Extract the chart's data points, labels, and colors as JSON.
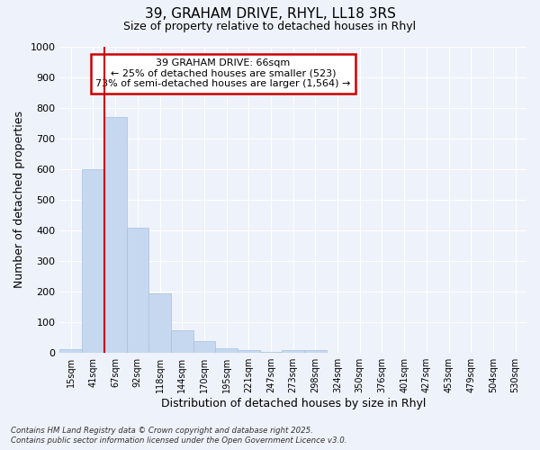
{
  "title_line1": "39, GRAHAM DRIVE, RHYL, LL18 3RS",
  "title_line2": "Size of property relative to detached houses in Rhyl",
  "xlabel": "Distribution of detached houses by size in Rhyl",
  "ylabel": "Number of detached properties",
  "categories": [
    "15sqm",
    "41sqm",
    "67sqm",
    "92sqm",
    "118sqm",
    "144sqm",
    "170sqm",
    "195sqm",
    "221sqm",
    "247sqm",
    "273sqm",
    "298sqm",
    "324sqm",
    "350sqm",
    "376sqm",
    "401sqm",
    "427sqm",
    "453sqm",
    "479sqm",
    "504sqm",
    "530sqm"
  ],
  "values": [
    12,
    600,
    770,
    410,
    193,
    75,
    38,
    15,
    8,
    5,
    10,
    10,
    0,
    0,
    0,
    0,
    0,
    0,
    0,
    0,
    0
  ],
  "bar_color": "#c5d8ef",
  "bar_edge_color": "#a8c0e0",
  "red_line_index": 2,
  "ylim": [
    0,
    1000
  ],
  "yticks": [
    0,
    100,
    200,
    300,
    400,
    500,
    600,
    700,
    800,
    900,
    1000
  ],
  "annotation_text": "39 GRAHAM DRIVE: 66sqm\n← 25% of detached houses are smaller (523)\n73% of semi-detached houses are larger (1,564) →",
  "annotation_box_color": "#ffffff",
  "annotation_box_edge": "#cc0000",
  "footer_line1": "Contains HM Land Registry data © Crown copyright and database right 2025.",
  "footer_line2": "Contains public sector information licensed under the Open Government Licence v3.0.",
  "background_color": "#eef2fa",
  "grid_color": "#ffffff"
}
